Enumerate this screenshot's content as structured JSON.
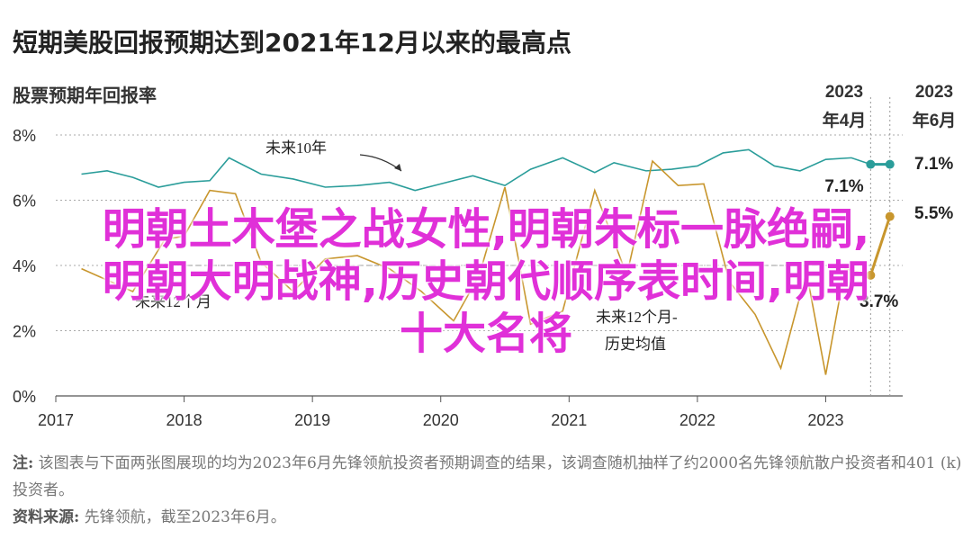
{
  "title": "短期美股回报预期达到2021年12月以来的最高点",
  "subtitle": "股票预期年回报率",
  "overlay": {
    "line1": "明朝土木堡之战女性,明朝朱标一脉绝嗣,",
    "line2": "明朝大明战神,历史朝代顺序表时间,明朝",
    "line3": "十大名将"
  },
  "note": {
    "label": "注:",
    "text": " 该图表与下面两张图展现的均为2023年6月先锋领航投资者预期调查的结果，该调查随机抽样了约2000名先锋领航散户投资者和401 (k) 投资者。",
    "source_label": "资料来源:",
    "source_text": " 先锋领航，截至2023年6月。"
  },
  "colors": {
    "teal": "#2a9d9a",
    "gold": "#c8962d",
    "axis": "#555555",
    "grid": "#aaaaaa"
  },
  "chart_data": {
    "type": "line",
    "ylim": [
      0,
      8
    ],
    "xlim": [
      2017,
      2023.6
    ],
    "y_ticks": [
      "0%",
      "2%",
      "4%",
      "6%",
      "8%"
    ],
    "x_ticks": [
      "2017",
      "2018",
      "2019",
      "2020",
      "2021",
      "2022",
      "2023"
    ],
    "x_tick_values": [
      2017,
      2018,
      2019,
      2020,
      2021,
      2022,
      2023
    ],
    "period_markers": [
      {
        "year": "2023",
        "month": "年4月"
      },
      {
        "year": "2023",
        "month": "年6月"
      }
    ],
    "series": [
      {
        "name": "未来10年",
        "color": "#2a9d9a",
        "x": [
          2017.2,
          2017.4,
          2017.6,
          2017.8,
          2018.0,
          2018.2,
          2018.35,
          2018.6,
          2018.85,
          2019.1,
          2019.35,
          2019.6,
          2019.8,
          2020.0,
          2020.25,
          2020.5,
          2020.7,
          2020.95,
          2021.2,
          2021.35,
          2021.6,
          2021.8,
          2022.0,
          2022.2,
          2022.4,
          2022.6,
          2022.8,
          2023.0,
          2023.2,
          2023.35,
          2023.5
        ],
        "y": [
          6.8,
          6.9,
          6.7,
          6.4,
          6.55,
          6.6,
          7.3,
          6.8,
          6.65,
          6.4,
          6.45,
          6.55,
          6.3,
          6.5,
          6.75,
          6.45,
          6.95,
          7.3,
          6.85,
          7.15,
          6.9,
          6.95,
          7.05,
          7.45,
          7.55,
          7.05,
          6.9,
          7.25,
          7.3,
          7.1,
          7.1
        ]
      },
      {
        "name": "未来12个月-历史均值",
        "color": "#c8962d",
        "x": [
          2017.2,
          2017.6,
          2017.85,
          2018.0,
          2018.2,
          2018.4,
          2018.6,
          2018.85,
          2019.1,
          2019.35,
          2019.6,
          2019.85,
          2020.1,
          2020.3,
          2020.5,
          2020.7,
          2020.95,
          2021.2,
          2021.45,
          2021.65,
          2021.85,
          2022.05,
          2022.25,
          2022.45,
          2022.65,
          2022.85,
          2023.0,
          2023.15,
          2023.35,
          2023.5
        ],
        "y": [
          3.9,
          3.2,
          4.8,
          4.9,
          6.3,
          6.2,
          4.1,
          3.2,
          4.2,
          4.3,
          3.9,
          3.2,
          2.3,
          3.7,
          6.4,
          2.2,
          2.6,
          6.3,
          3.7,
          7.2,
          6.45,
          6.5,
          3.5,
          2.5,
          0.85,
          3.8,
          0.65,
          3.9,
          3.7,
          5.5
        ]
      }
    ],
    "labels": {
      "teal_series_label": "未来10年",
      "gold_series_label_line1": "未来12个月-",
      "gold_series_label_line2": "历史均值",
      "left_label": "未来12个月",
      "teal_end_apr": "7.1%",
      "teal_end_jun": "7.1%",
      "gold_end_jun": "5.5%",
      "gold_end_apr": "3.7%"
    }
  }
}
